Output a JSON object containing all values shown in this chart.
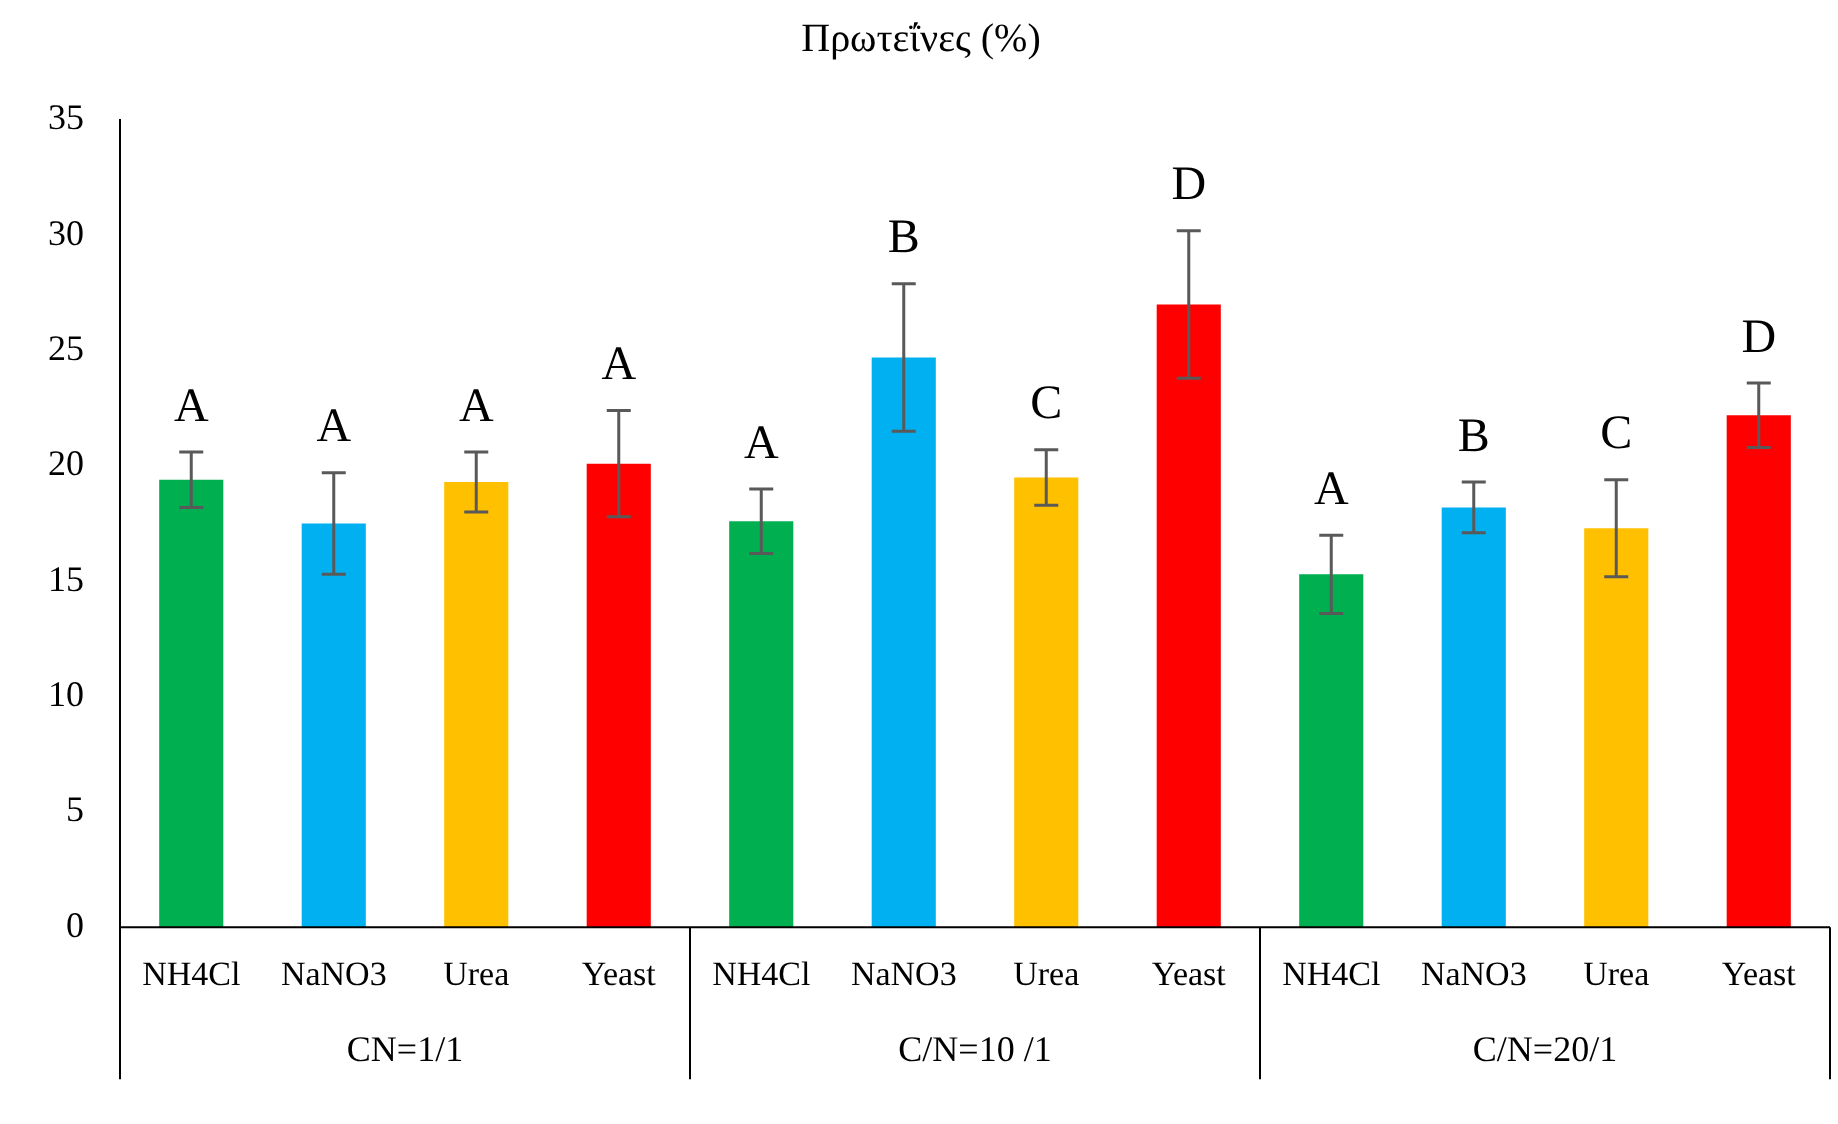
{
  "chart_data": {
    "type": "bar",
    "title": "Πρωτεΐνες (%)",
    "categories": [
      "NH4Cl",
      "NaNO3",
      "Urea",
      "Yeast",
      "NH4Cl",
      "NaNO3",
      "Urea",
      "Yeast",
      "NH4Cl",
      "NaNO3",
      "Urea",
      "Yeast"
    ],
    "values": [
      19.4,
      17.5,
      19.3,
      20.1,
      17.6,
      24.7,
      19.5,
      27.0,
      15.3,
      18.2,
      17.3,
      22.2
    ],
    "errors": [
      1.2,
      2.2,
      1.3,
      2.3,
      1.4,
      3.2,
      1.2,
      3.2,
      1.7,
      1.1,
      2.1,
      1.4
    ],
    "colors": [
      "#00b050",
      "#00b0f0",
      "#ffc000",
      "#ff0000",
      "#00b050",
      "#00b0f0",
      "#ffc000",
      "#ff0000",
      "#00b050",
      "#00b0f0",
      "#ffc000",
      "#ff0000"
    ],
    "value_labels": [
      "A",
      "A",
      "A",
      "A",
      "A",
      "B",
      "C",
      "D",
      "A",
      "B",
      "C",
      "D"
    ],
    "annotations": [
      "CN=1/1",
      "C/N=10 /1",
      "C/N=20/1"
    ],
    "ylim": [
      0,
      35
    ],
    "yticks": [
      0,
      5,
      10,
      15,
      20,
      25,
      30,
      35
    ],
    "grid": false,
    "legend": false
  }
}
